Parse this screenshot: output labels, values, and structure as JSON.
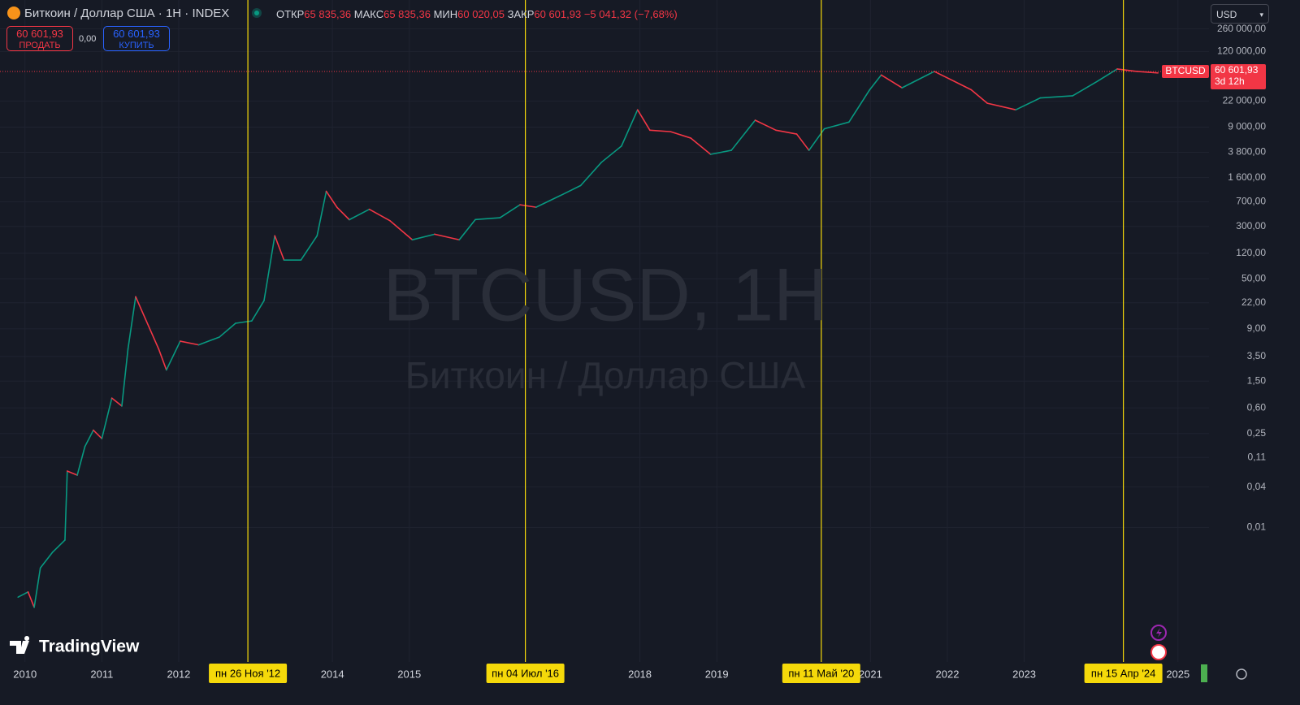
{
  "header": {
    "title": "Биткоин / Доллар США · 1H · INDEX",
    "open_label": "ОТКР",
    "open": "65 835,36",
    "high_label": "МАКС",
    "high": "65 835,36",
    "low_label": "МИН",
    "low": "60 020,05",
    "close_label": "ЗАКР",
    "close": "60 601,93",
    "change": "−5 041,32 (−7,68%)"
  },
  "trade": {
    "sell_price": "60 601,93",
    "sell_label": "ПРОДАТЬ",
    "spread": "0,00",
    "buy_price": "60 601,93",
    "buy_label": "КУПИТЬ"
  },
  "currency": "USD",
  "watermark": {
    "symbol": "BTCUSD, 1H",
    "description": "Биткоин / Доллар США"
  },
  "logo": "TradingView",
  "chart_data": {
    "type": "line",
    "log_scale": true,
    "grid": true,
    "up_color": "#089981",
    "down_color": "#f23645",
    "marker_color": "#f5d90a",
    "xlim": [
      2009.675,
      2025.404
    ],
    "ylim": [
      0.0001,
      700000
    ],
    "xticks": [
      2010,
      2011,
      2012,
      2014,
      2015,
      2018,
      2019,
      2021,
      2022,
      2023,
      2025
    ],
    "yticks": [
      {
        "value": 260000,
        "label": "260 000,00"
      },
      {
        "value": 120000,
        "label": "120 000,00"
      },
      {
        "value": 22000,
        "label": "22 000,00"
      },
      {
        "value": 9000,
        "label": "9 000,00"
      },
      {
        "value": 3800,
        "label": "3 800,00"
      },
      {
        "value": 1600,
        "label": "1 600,00"
      },
      {
        "value": 700,
        "label": "700,00"
      },
      {
        "value": 300,
        "label": "300,00"
      },
      {
        "value": 120,
        "label": "120,00"
      },
      {
        "value": 50,
        "label": "50,00"
      },
      {
        "value": 22,
        "label": "22,00"
      },
      {
        "value": 9,
        "label": "9,00"
      },
      {
        "value": 3.5,
        "label": "3,50"
      },
      {
        "value": 1.5,
        "label": "1,50"
      },
      {
        "value": 0.6,
        "label": "0,60"
      },
      {
        "value": 0.25,
        "label": "0,25"
      },
      {
        "value": 0.11,
        "label": "0,11"
      },
      {
        "value": 0.04,
        "label": "0,04"
      },
      {
        "value": 0.01,
        "label": "0,01"
      }
    ],
    "x": [
      2009.91,
      2010.04,
      2010.12,
      2010.2,
      2010.36,
      2010.52,
      2010.55,
      2010.68,
      2010.78,
      2010.89,
      2011.0,
      2011.13,
      2011.26,
      2011.34,
      2011.44,
      2011.58,
      2011.74,
      2011.84,
      2012.02,
      2012.26,
      2012.53,
      2012.74,
      2012.95,
      2013.11,
      2013.25,
      2013.37,
      2013.59,
      2013.8,
      2013.92,
      2014.06,
      2014.22,
      2014.48,
      2014.75,
      2015.04,
      2015.33,
      2015.65,
      2015.86,
      2016.18,
      2016.44,
      2016.65,
      2016.97,
      2017.23,
      2017.5,
      2017.76,
      2017.97,
      2018.13,
      2018.4,
      2018.66,
      2018.92,
      2019.19,
      2019.5,
      2019.77,
      2020.04,
      2020.2,
      2020.4,
      2020.72,
      2020.99,
      2021.14,
      2021.41,
      2021.83,
      2022.09,
      2022.31,
      2022.52,
      2022.89,
      2023.21,
      2023.63,
      2023.95,
      2024.21,
      2024.47,
      2024.74
    ],
    "values": [
      0.00092,
      0.0011,
      0.00065,
      0.0025,
      0.0043,
      0.0065,
      0.069,
      0.06,
      0.16,
      0.28,
      0.21,
      0.84,
      0.64,
      4.5,
      27,
      11.7,
      4.5,
      2.2,
      5.9,
      5.2,
      6.8,
      10.9,
      11.8,
      23.6,
      218,
      95,
      95,
      218,
      1000,
      576,
      378,
      540,
      364,
      190,
      230,
      190,
      380,
      405,
      630,
      580,
      870,
      1220,
      2700,
      4700,
      16300,
      8100,
      7700,
      6200,
      3550,
      4070,
      11400,
      8100,
      7100,
      4070,
      8500,
      10700,
      32400,
      53700,
      34600,
      60600,
      43200,
      32400,
      20400,
      16300,
      24500,
      26300,
      43200,
      66000,
      60600,
      57500
    ],
    "markers": [
      {
        "x": 2012.9,
        "label": "пн 26 Ноя '12"
      },
      {
        "x": 2016.51,
        "label": "пн 04 Июл '16"
      },
      {
        "x": 2020.36,
        "label": "пн 11 Май '20"
      },
      {
        "x": 2024.29,
        "label": "пн 15 Апр '24"
      }
    ],
    "price_tag": {
      "symbol": "BTCUSD",
      "value": 60601.93,
      "label": "60 601,93",
      "countdown": "3d 12h"
    }
  }
}
